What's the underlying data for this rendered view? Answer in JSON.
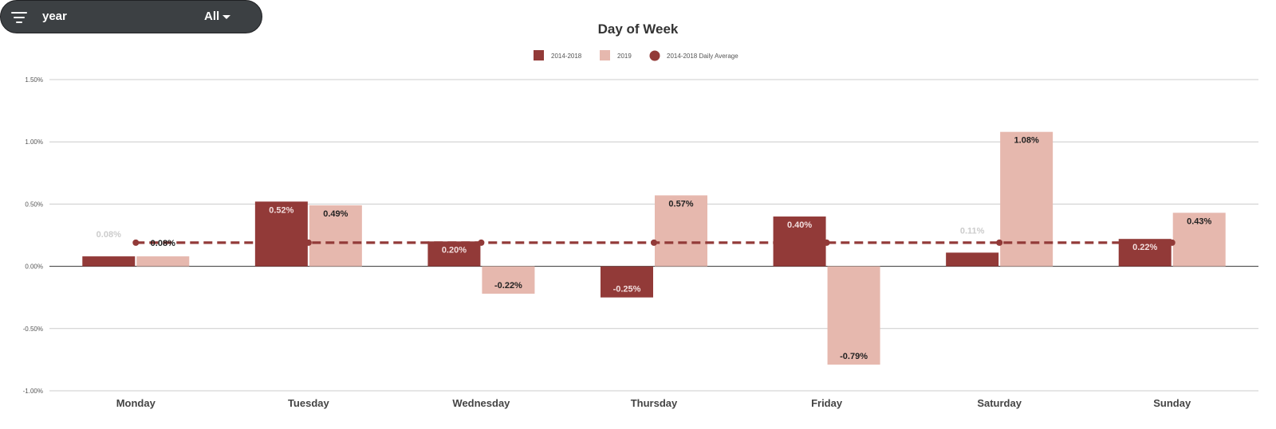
{
  "filter": {
    "name": "year",
    "value": "All"
  },
  "colors": {
    "series_a": "#923a38",
    "series_b": "#e6b8ae",
    "average": "#923a38",
    "grid": "#cccccc",
    "axis": "#333333"
  },
  "chart_data": {
    "type": "bar",
    "title": "Day of Week",
    "categories": [
      "Monday",
      "Tuesday",
      "Wednesday",
      "Thursday",
      "Friday",
      "Saturday",
      "Sunday"
    ],
    "series": [
      {
        "name": "2014-2018",
        "values": [
          0.08,
          0.52,
          0.2,
          -0.25,
          0.4,
          0.11,
          0.22
        ],
        "labels": [
          "0.08%",
          "0.52%",
          "0.20%",
          "-0.25%",
          "0.40%",
          "0.11%",
          "0.22%"
        ]
      },
      {
        "name": "2019",
        "values": [
          0.08,
          0.49,
          -0.22,
          0.57,
          -0.79,
          1.08,
          0.43
        ],
        "labels": [
          "0.08%",
          "0.49%",
          "-0.22%",
          "0.57%",
          "-0.79%",
          "1.08%",
          "0.43%"
        ]
      }
    ],
    "average": {
      "name": "2014-2018 Daily Average",
      "value": 0.19
    },
    "yticks": [
      1.5,
      1.0,
      0.5,
      0.0,
      -0.5,
      -1.0
    ],
    "ytick_labels": [
      "1.50%",
      "1.00%",
      "0.50%",
      "0.00%",
      "-0.50%",
      "-1.00%"
    ],
    "ylim": [
      -1.0,
      1.5
    ],
    "xlabel": "",
    "ylabel": "",
    "grid": true,
    "legend_position": "top-center"
  }
}
